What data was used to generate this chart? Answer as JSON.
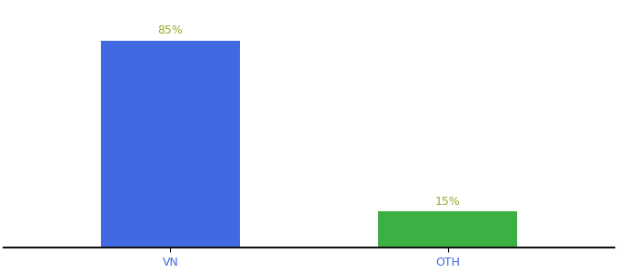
{
  "categories": [
    "VN",
    "OTH"
  ],
  "values": [
    85,
    15
  ],
  "bar_colors": [
    "#4169E1",
    "#3CB043"
  ],
  "label_color": "#9aaa30",
  "ylim": [
    0,
    100
  ],
  "background_color": "#ffffff",
  "bar_width": 0.5,
  "label_fontsize": 9,
  "tick_fontsize": 9,
  "tick_color": "#4169E1",
  "bottom_spine_color": "#111111",
  "xlim": [
    -0.6,
    1.6
  ]
}
